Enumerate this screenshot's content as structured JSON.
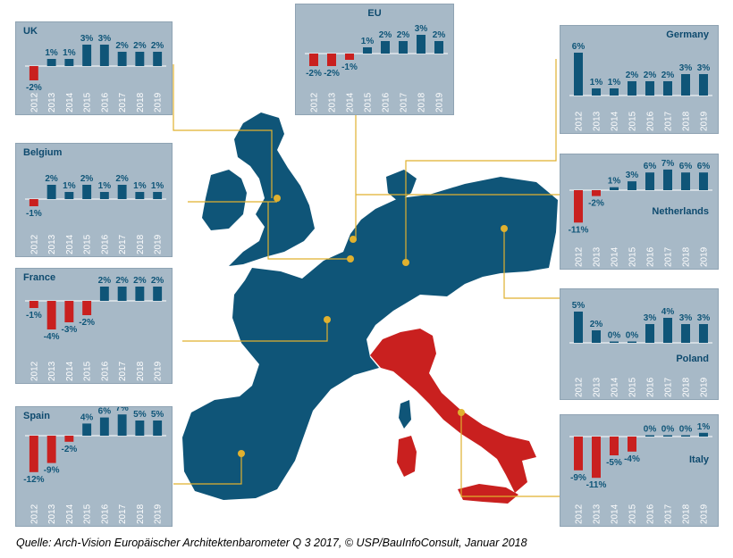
{
  "source": "Quelle: Arch-Vision Europäischer Architektenbarometer Q 3 2017, © USP/BauInfoConsult, Januar 2018",
  "colors": {
    "positive": "#0f5578",
    "negative": "#c9201f",
    "panel_bg": "#a7b9c7",
    "map_blue": "#0f5578",
    "map_red": "#c9201f",
    "connector": "#e0b12f"
  },
  "chart_data": [
    {
      "type": "bar",
      "title": "UK",
      "title_position": "top-left",
      "categories": [
        "2012",
        "2013",
        "2014",
        "2015",
        "2016",
        "2017",
        "2018",
        "2019"
      ],
      "values": [
        -2,
        1,
        1,
        3,
        3,
        2,
        2,
        2
      ],
      "labels": [
        "-2%",
        "1%",
        "1%",
        "3%",
        "3%",
        "2%",
        "2%",
        "2%"
      ]
    },
    {
      "type": "bar",
      "title": "EU",
      "title_position": "top-center",
      "categories": [
        "2012",
        "2013",
        "2014",
        "2015",
        "2016",
        "2017",
        "2018",
        "2019"
      ],
      "values": [
        -2,
        -2,
        -1,
        1,
        2,
        2,
        3,
        2
      ],
      "labels": [
        "-2%",
        "-2%",
        "-1%",
        "1%",
        "2%",
        "2%",
        "3%",
        "2%"
      ]
    },
    {
      "type": "bar",
      "title": "Germany",
      "title_position": "top-right",
      "categories": [
        "2012",
        "2013",
        "2014",
        "2015",
        "2016",
        "2017",
        "2018",
        "2019"
      ],
      "values": [
        6,
        1,
        1,
        2,
        2,
        2,
        3,
        3
      ],
      "labels": [
        "6%",
        "1%",
        "1%",
        "2%",
        "2%",
        "2%",
        "3%",
        "3%"
      ]
    },
    {
      "type": "bar",
      "title": "Belgium",
      "title_position": "top-left",
      "categories": [
        "2012",
        "2013",
        "2014",
        "2015",
        "2016",
        "2017",
        "2018",
        "2019"
      ],
      "values": [
        -1,
        2,
        1,
        2,
        1,
        2,
        1,
        1
      ],
      "labels": [
        "-1%",
        "2%",
        "1%",
        "2%",
        "1%",
        "2%",
        "1%",
        "1%"
      ]
    },
    {
      "type": "bar",
      "title": "Netherlands",
      "title_position": "middle-right",
      "categories": [
        "2012",
        "2013",
        "2014",
        "2015",
        "2016",
        "2017",
        "2018",
        "2019"
      ],
      "values": [
        -11,
        -2,
        1,
        3,
        6,
        7,
        6,
        6
      ],
      "labels": [
        "-11%",
        "-2%",
        "1%",
        "3%",
        "6%",
        "7%",
        "6%",
        "6%"
      ]
    },
    {
      "type": "bar",
      "title": "France",
      "title_position": "top-left",
      "categories": [
        "2012",
        "2013",
        "2014",
        "2015",
        "2016",
        "2017",
        "2018",
        "2019"
      ],
      "values": [
        -1,
        -4,
        -3,
        -2,
        2,
        2,
        2,
        2
      ],
      "labels": [
        "-1%",
        "-4%",
        "-3%",
        "-2%",
        "2%",
        "2%",
        "2%",
        "2%"
      ]
    },
    {
      "type": "bar",
      "title": "Poland",
      "title_position": "middle-right",
      "categories": [
        "2012",
        "2013",
        "2014",
        "2015",
        "2016",
        "2017",
        "2018",
        "2019"
      ],
      "values": [
        5,
        2,
        0,
        0,
        3,
        4,
        3,
        3
      ],
      "labels": [
        "5%",
        "2%",
        "0%",
        "0%",
        "3%",
        "4%",
        "3%",
        "3%"
      ]
    },
    {
      "type": "bar",
      "title": "Spain",
      "title_position": "top-left",
      "categories": [
        "2012",
        "2013",
        "2014",
        "2015",
        "2016",
        "2017",
        "2018",
        "2019"
      ],
      "values": [
        -12,
        -9,
        -2,
        4,
        6,
        7,
        5,
        5
      ],
      "labels": [
        "-12%",
        "-9%",
        "-2%",
        "4%",
        "6%",
        "7%",
        "5%",
        "5%"
      ]
    },
    {
      "type": "bar",
      "title": "Italy",
      "title_position": "middle-right",
      "categories": [
        "2012",
        "2013",
        "2014",
        "2015",
        "2016",
        "2017",
        "2018",
        "2019"
      ],
      "values": [
        -9,
        -11,
        -5,
        -4,
        0,
        0,
        0,
        1
      ],
      "labels": [
        "-9%",
        "-11%",
        "-5%",
        "-4%",
        "0%",
        "0%",
        "0%",
        "1%"
      ]
    }
  ]
}
